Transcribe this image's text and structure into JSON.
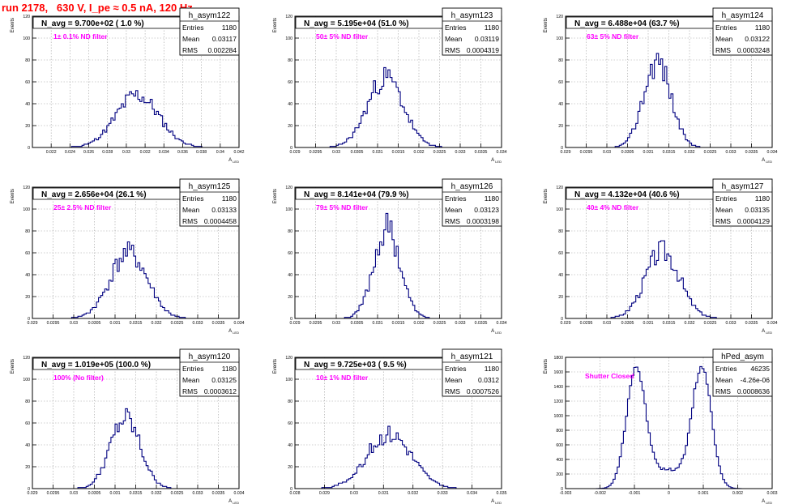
{
  "title": "run 2178,   630 V, I_pe ≈ 0.5 nA, 120 Hz",
  "y_axis_label": "Events",
  "x_axis_label": "A_{LED}",
  "colors": {
    "title": "#ff0000",
    "histogram": "#000080",
    "annotation": "#ff00ff",
    "grid": "#a0a0a0"
  },
  "chart_data": [
    {
      "type": "histogram",
      "name": "h_asym122",
      "navg": "N_avg = 9.700e+02 ( 1.0 %)",
      "filter": "1± 0.1% ND filter",
      "stats": {
        "Entries": "1180",
        "Mean": "0.03117",
        "RMS": "0.002284"
      },
      "xlim": [
        0.02,
        0.042
      ],
      "ylim": [
        0,
        120
      ],
      "xticks": [
        "0.022",
        "0.024",
        "0.026",
        "0.028",
        "0.03",
        "0.032",
        "0.034",
        "0.036",
        "0.038",
        "0.04",
        "0.042"
      ],
      "yticks": [
        "0",
        "20",
        "40",
        "60",
        "80",
        "100",
        "120"
      ],
      "grid": true,
      "peak": 0.03117,
      "sigma": 0.002284,
      "max": 48,
      "seed": 11
    },
    {
      "type": "histogram",
      "name": "h_asym123",
      "navg": "N_avg = 5.195e+04 (51.0 %)",
      "filter": "50± 5% ND filter",
      "stats": {
        "Entries": "1180",
        "Mean": "0.03119",
        "RMS": "0.0004319"
      },
      "xlim": [
        0.029,
        0.034
      ],
      "ylim": [
        0,
        120
      ],
      "xticks": [
        "0.029",
        "0.0295",
        "0.03",
        "0.0305",
        "0.031",
        "0.0315",
        "0.032",
        "0.0325",
        "0.033",
        "0.0335",
        "0.034"
      ],
      "yticks": [
        "0",
        "20",
        "40",
        "60",
        "80",
        "100",
        "120"
      ],
      "grid": true,
      "peak": 0.03119,
      "sigma": 0.0004319,
      "max": 64,
      "seed": 23
    },
    {
      "type": "histogram",
      "name": "h_asym124",
      "navg": "N_avg = 6.488e+04 (63.7 %)",
      "filter": "63± 5% ND filter",
      "stats": {
        "Entries": "1180",
        "Mean": "0.03122",
        "RMS": "0.0003248"
      },
      "xlim": [
        0.029,
        0.034
      ],
      "ylim": [
        0,
        120
      ],
      "xticks": [
        "0.029",
        "0.0295",
        "0.03",
        "0.0305",
        "0.031",
        "0.0315",
        "0.032",
        "0.0325",
        "0.033",
        "0.0335",
        "0.034"
      ],
      "yticks": [
        "0",
        "20",
        "40",
        "60",
        "80",
        "100",
        "120"
      ],
      "grid": true,
      "peak": 0.03122,
      "sigma": 0.0003248,
      "max": 80,
      "seed": 37
    },
    {
      "type": "histogram",
      "name": "h_asym125",
      "navg": "N_avg = 2.656e+04 (26.1 %)",
      "filter": "25± 2.5% ND filter",
      "stats": {
        "Entries": "1180",
        "Mean": "0.03133",
        "RMS": "0.0004458"
      },
      "xlim": [
        0.029,
        0.034
      ],
      "ylim": [
        0,
        120
      ],
      "xticks": [
        "0.029",
        "0.0295",
        "0.03",
        "0.0305",
        "0.031",
        "0.0315",
        "0.032",
        "0.0325",
        "0.033",
        "0.0335",
        "0.034"
      ],
      "yticks": [
        "0",
        "20",
        "40",
        "60",
        "80",
        "100",
        "120"
      ],
      "grid": true,
      "peak": 0.03133,
      "sigma": 0.0004458,
      "max": 60,
      "seed": 41
    },
    {
      "type": "histogram",
      "name": "h_asym126",
      "navg": "N_avg = 8.141e+04 (79.9 %)",
      "filter": "79± 5% ND filter",
      "stats": {
        "Entries": "1180",
        "Mean": "0.03123",
        "RMS": "0.0003198"
      },
      "xlim": [
        0.029,
        0.034
      ],
      "ylim": [
        0,
        120
      ],
      "xticks": [
        "0.029",
        "0.0295",
        "0.03",
        "0.0305",
        "0.031",
        "0.0315",
        "0.032",
        "0.0325",
        "0.033",
        "0.0335",
        "0.034"
      ],
      "yticks": [
        "0",
        "20",
        "40",
        "60",
        "80",
        "100",
        "120"
      ],
      "grid": true,
      "peak": 0.03123,
      "sigma": 0.0003198,
      "max": 82,
      "seed": 53
    },
    {
      "type": "histogram",
      "name": "h_asym127",
      "navg": "N_avg = 4.132e+04 (40.6 %)",
      "filter": "40± 4% ND filter",
      "stats": {
        "Entries": "1180",
        "Mean": "0.03135",
        "RMS": "0.0004129"
      },
      "xlim": [
        0.029,
        0.034
      ],
      "ylim": [
        0,
        120
      ],
      "xticks": [
        "0.029",
        "0.0295",
        "0.03",
        "0.0305",
        "0.031",
        "0.0315",
        "0.032",
        "0.0325",
        "0.033",
        "0.0335",
        "0.034"
      ],
      "yticks": [
        "0",
        "20",
        "40",
        "60",
        "80",
        "100",
        "120"
      ],
      "grid": true,
      "peak": 0.03135,
      "sigma": 0.0004129,
      "max": 62,
      "seed": 67
    },
    {
      "type": "histogram",
      "name": "h_asym120",
      "navg": "N_avg = 1.019e+05 (100.0 %)",
      "filter": "100% (No filter)",
      "stats": {
        "Entries": "1180",
        "Mean": "0.03125",
        "RMS": "0.0003612"
      },
      "xlim": [
        0.029,
        0.034
      ],
      "ylim": [
        0,
        120
      ],
      "xticks": [
        "0.029",
        "0.0295",
        "0.03",
        "0.0305",
        "0.031",
        "0.0315",
        "0.032",
        "0.0325",
        "0.033",
        "0.0335",
        "0.034"
      ],
      "yticks": [
        "0",
        "20",
        "40",
        "60",
        "80",
        "100",
        "120"
      ],
      "grid": true,
      "peak": 0.03125,
      "sigma": 0.0003612,
      "max": 64,
      "seed": 79
    },
    {
      "type": "histogram",
      "name": "h_asym121",
      "navg": "N_avg = 9.725e+03 ( 9.5 %)",
      "filter": "10± 1% ND filter",
      "stats": {
        "Entries": "1180",
        "Mean": "0.0312",
        "RMS": "0.0007526"
      },
      "xlim": [
        0.028,
        0.035
      ],
      "ylim": [
        0,
        120
      ],
      "xticks": [
        "0.028",
        "0.029",
        "0.03",
        "0.031",
        "0.032",
        "0.033",
        "0.034",
        "0.035"
      ],
      "yticks": [
        "0",
        "20",
        "40",
        "60",
        "80",
        "100",
        "120"
      ],
      "grid": true,
      "peak": 0.0312,
      "sigma": 0.0007526,
      "max": 50,
      "seed": 83
    },
    {
      "type": "histogram",
      "name": "hPed_asym",
      "navg": "",
      "filter": "Shutter Closed",
      "stats": {
        "Entries": "46235",
        "Mean": "-4.26e-06",
        "RMS": "0.0008636"
      },
      "xlim": [
        -0.003,
        0.003
      ],
      "ylim": [
        0,
        1800
      ],
      "xticks": [
        "-0.003",
        "-0.002",
        "-0.001",
        "0",
        "0.001",
        "0.002",
        "0.003"
      ],
      "yticks": [
        "0",
        "200",
        "400",
        "600",
        "800",
        "1000",
        "1200",
        "1400",
        "1600",
        "1800"
      ],
      "grid": true,
      "pedestal": true,
      "seed": 97
    }
  ]
}
